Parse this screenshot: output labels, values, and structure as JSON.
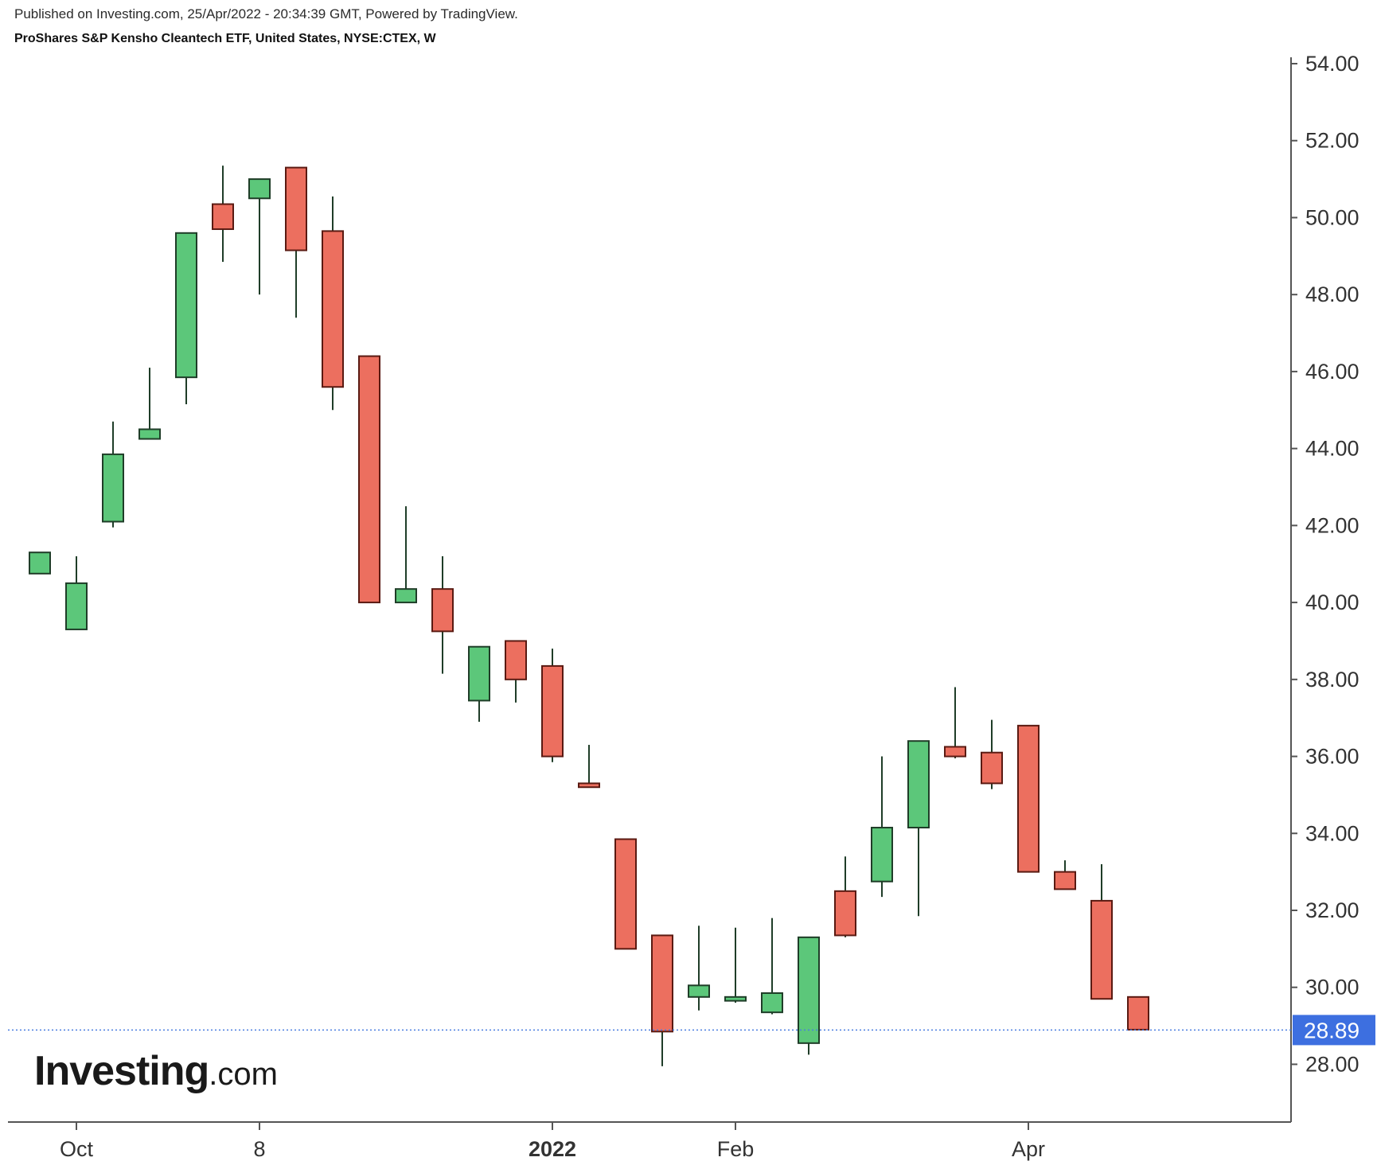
{
  "header": {
    "published_line": "Published on Investing.com, 25/Apr/2022 - 20:34:39 GMT, Powered by TradingView.",
    "instrument_line": "ProShares S&P Kensho Cleantech ETF, United States, NYSE:CTEX, W"
  },
  "logo": {
    "main": "Investing",
    "suffix": ".com"
  },
  "colors": {
    "up": "#5cc77a",
    "down": "#ec6f5f",
    "outline": "#2d2d2d",
    "wick": "#1f3d28",
    "price_line": "#4a7de0",
    "price_tag": "#3d6fe0",
    "axis": "#555555"
  },
  "chart_data": {
    "type": "candlestick",
    "timeframe": "W",
    "ylim": [
      26.5,
      54.0
    ],
    "y_ticks": [
      "28.00",
      "30.00",
      "32.00",
      "34.00",
      "36.00",
      "38.00",
      "40.00",
      "42.00",
      "44.00",
      "46.00",
      "48.00",
      "50.00",
      "52.00",
      "54.00"
    ],
    "x_ticks": [
      {
        "label": "Oct",
        "bar_index": 1,
        "bold": false
      },
      {
        "label": "8",
        "bar_index": 6,
        "bold": false
      },
      {
        "label": "2022",
        "bar_index": 14,
        "bold": true
      },
      {
        "label": "Feb",
        "bar_index": 19,
        "bold": false
      },
      {
        "label": "Apr",
        "bar_index": 27,
        "bold": false
      }
    ],
    "last_price": 28.89,
    "last_price_label": "28.89",
    "ohlc": [
      {
        "o": 40.75,
        "h": 41.3,
        "l": 40.75,
        "c": 41.3
      },
      {
        "o": 39.3,
        "h": 41.2,
        "l": 39.3,
        "c": 40.5
      },
      {
        "o": 42.1,
        "h": 44.7,
        "l": 41.95,
        "c": 43.85
      },
      {
        "o": 44.25,
        "h": 46.1,
        "l": 44.25,
        "c": 44.5
      },
      {
        "o": 45.85,
        "h": 49.6,
        "l": 45.15,
        "c": 49.6
      },
      {
        "o": 50.35,
        "h": 51.35,
        "l": 48.85,
        "c": 49.7
      },
      {
        "o": 50.5,
        "h": 51.0,
        "l": 48.0,
        "c": 51.0
      },
      {
        "o": 51.3,
        "h": 51.3,
        "l": 47.4,
        "c": 49.15
      },
      {
        "o": 49.65,
        "h": 50.55,
        "l": 45.0,
        "c": 45.6
      },
      {
        "o": 46.4,
        "h": 46.4,
        "l": 40.0,
        "c": 40.0
      },
      {
        "o": 40.0,
        "h": 42.5,
        "l": 40.0,
        "c": 40.35
      },
      {
        "o": 40.35,
        "h": 41.2,
        "l": 38.15,
        "c": 39.25
      },
      {
        "o": 37.45,
        "h": 38.85,
        "l": 36.9,
        "c": 38.85
      },
      {
        "o": 39.0,
        "h": 39.0,
        "l": 37.4,
        "c": 38.0
      },
      {
        "o": 38.35,
        "h": 38.8,
        "l": 35.85,
        "c": 36.0
      },
      {
        "o": 35.3,
        "h": 36.3,
        "l": 35.2,
        "c": 35.2
      },
      {
        "o": 33.85,
        "h": 33.85,
        "l": 31.0,
        "c": 31.0
      },
      {
        "o": 31.35,
        "h": 31.35,
        "l": 27.95,
        "c": 28.85
      },
      {
        "o": 29.75,
        "h": 31.6,
        "l": 29.4,
        "c": 30.05
      },
      {
        "o": 29.65,
        "h": 31.55,
        "l": 29.6,
        "c": 29.75
      },
      {
        "o": 29.35,
        "h": 31.8,
        "l": 29.3,
        "c": 29.85
      },
      {
        "o": 28.55,
        "h": 31.3,
        "l": 28.25,
        "c": 31.3
      },
      {
        "o": 32.5,
        "h": 33.4,
        "l": 31.3,
        "c": 31.35
      },
      {
        "o": 32.75,
        "h": 36.0,
        "l": 32.35,
        "c": 34.15
      },
      {
        "o": 34.15,
        "h": 36.4,
        "l": 31.85,
        "c": 36.4
      },
      {
        "o": 36.25,
        "h": 37.8,
        "l": 35.95,
        "c": 36.0
      },
      {
        "o": 36.1,
        "h": 36.95,
        "l": 35.15,
        "c": 35.3
      },
      {
        "o": 36.8,
        "h": 36.8,
        "l": 33.0,
        "c": 33.0
      },
      {
        "o": 33.0,
        "h": 33.3,
        "l": 32.55,
        "c": 32.55
      },
      {
        "o": 32.25,
        "h": 33.2,
        "l": 29.7,
        "c": 29.7
      },
      {
        "o": 29.75,
        "h": 29.75,
        "l": 28.9,
        "c": 28.9
      }
    ]
  }
}
